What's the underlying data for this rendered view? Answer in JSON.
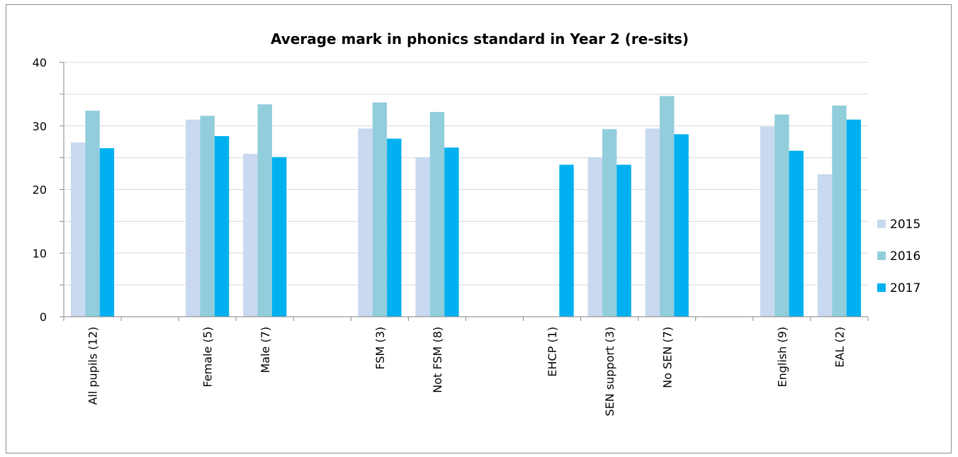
{
  "chart_data": {
    "type": "bar",
    "title": "Average mark in phonics standard in Year 2 (re-sits)",
    "xlabel": "",
    "ylabel": "",
    "ylim": [
      0,
      40
    ],
    "yticks": [
      0,
      10,
      20,
      30,
      40
    ],
    "grid": true,
    "legend_position": "right",
    "categories": [
      "All pupils (12)",
      "",
      "Female (5)",
      "Male (7)",
      "",
      "FSM (3)",
      "Not FSM (8)",
      "",
      "EHCP (1)",
      "SEN support (3)",
      "No SEN (7)",
      "",
      "English (9)",
      "EAL (2)"
    ],
    "series": [
      {
        "name": "2015",
        "color": "#c9d9f0",
        "values": [
          27.4,
          null,
          31.0,
          25.6,
          null,
          29.6,
          25.1,
          null,
          null,
          25.1,
          29.6,
          null,
          29.9,
          22.4
        ]
      },
      {
        "name": "2016",
        "color": "#92cddc",
        "values": [
          32.4,
          null,
          31.6,
          33.4,
          null,
          33.7,
          32.2,
          null,
          null,
          29.5,
          34.7,
          null,
          31.8,
          33.2
        ]
      },
      {
        "name": "2017",
        "color": "#00b0f0",
        "values": [
          26.5,
          null,
          28.4,
          25.1,
          null,
          28.0,
          26.6,
          null,
          23.9,
          23.9,
          28.7,
          null,
          26.1,
          31.0
        ]
      }
    ]
  }
}
